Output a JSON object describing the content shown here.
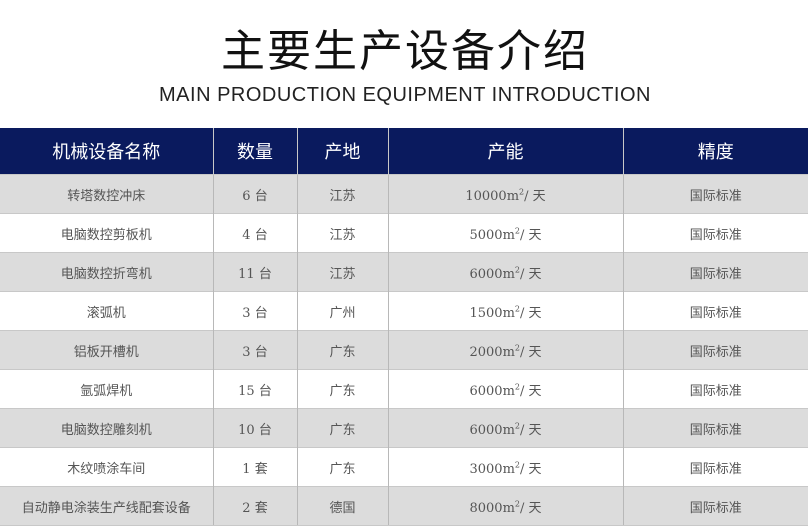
{
  "title": "主要生产设备介绍",
  "subtitle": "MAIN PRODUCTION EQUIPMENT INTRODUCTION",
  "table": {
    "headers": [
      "机械设备名称",
      "数量",
      "产地",
      "产能",
      "精度"
    ],
    "rows": [
      {
        "name": "转塔数控冲床",
        "qty": "6 台",
        "origin": "江苏",
        "capacity": "10000",
        "unit": "m",
        "sup": "2",
        "per": "/ 天",
        "precision": "国际标准"
      },
      {
        "name": "电脑数控剪板机",
        "qty": "4 台",
        "origin": "江苏",
        "capacity": "5000",
        "unit": "m",
        "sup": "2",
        "per": "/ 天",
        "precision": "国际标准"
      },
      {
        "name": "电脑数控折弯机",
        "qty": "11 台",
        "origin": "江苏",
        "capacity": "6000",
        "unit": "m",
        "sup": "2",
        "per": "/ 天",
        "precision": "国际标准"
      },
      {
        "name": "滚弧机",
        "qty": "3 台",
        "origin": "广州",
        "capacity": "1500",
        "unit": "m",
        "sup": "2",
        "per": "/ 天",
        "precision": "国际标准"
      },
      {
        "name": "铝板开槽机",
        "qty": "3 台",
        "origin": "广东",
        "capacity": "2000",
        "unit": "m",
        "sup": "2",
        "per": "/ 天",
        "precision": "国际标准"
      },
      {
        "name": "氩弧焊机",
        "qty": "15 台",
        "origin": "广东",
        "capacity": "6000",
        "unit": "m",
        "sup": "2",
        "per": "/ 天",
        "precision": "国际标准"
      },
      {
        "name": "电脑数控雕刻机",
        "qty": "10 台",
        "origin": "广东",
        "capacity": "6000",
        "unit": "m",
        "sup": "2",
        "per": "/ 天",
        "precision": "国际标准"
      },
      {
        "name": "木纹喷涂车间",
        "qty": "1 套",
        "origin": "广东",
        "capacity": "3000",
        "unit": "m",
        "sup": "2",
        "per": "/ 天",
        "precision": "国际标准"
      },
      {
        "name": "自动静电涂装生产线配套设备",
        "qty": "2 套",
        "origin": "德国",
        "capacity": "8000",
        "unit": "m",
        "sup": "2",
        "per": "/ 天",
        "precision": "国际标准"
      }
    ]
  },
  "colors": {
    "header_bg": "#0a1a5e",
    "stripe": "#dcdcdc"
  }
}
